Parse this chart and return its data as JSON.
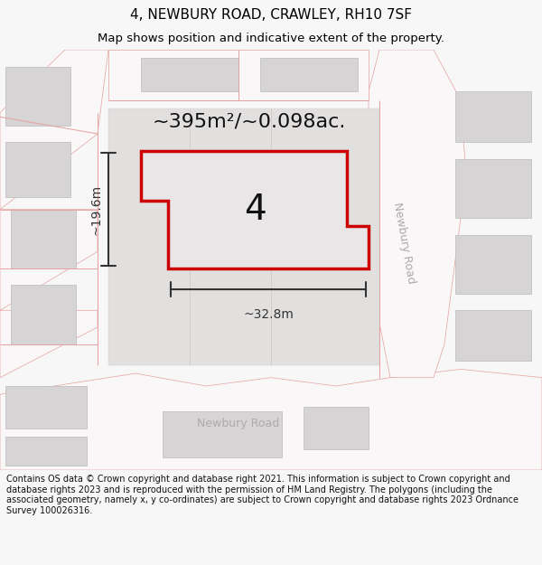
{
  "title": "4, NEWBURY ROAD, CRAWLEY, RH10 7SF",
  "subtitle": "Map shows position and indicative extent of the property.",
  "area_label": "~395m²/~0.098ac.",
  "property_number": "4",
  "dim_width": "~32.8m",
  "dim_height": "~19.6m",
  "road_label_diagonal": "Newbury Road",
  "road_label_bottom": "Newbury Road",
  "footer_text": "Contains OS data © Crown copyright and database right 2021. This information is subject to Crown copyright and database rights 2023 and is reproduced with the permission of HM Land Registry. The polygons (including the associated geometry, namely x, y co-ordinates) are subject to Crown copyright and database rights 2023 Ordnance Survey 100026316.",
  "bg_color": "#f7f7f7",
  "map_bg": "#ebe9e9",
  "road_fill": "#f9f7f7",
  "building_fill": "#d6d4d4",
  "road_stroke": "#e8a0a0",
  "property_stroke": "#cc0000",
  "property_fill": "#e8e6e6",
  "dim_color": "#333333",
  "footer_bg": "#ffffff",
  "title_color": "#000000",
  "footer_color": "#111111",
  "title_fontsize": 11,
  "subtitle_fontsize": 9.5,
  "area_fontsize": 16,
  "property_num_fontsize": 28,
  "dim_fontsize": 10,
  "road_label_fontsize": 9,
  "footer_fontsize": 7
}
